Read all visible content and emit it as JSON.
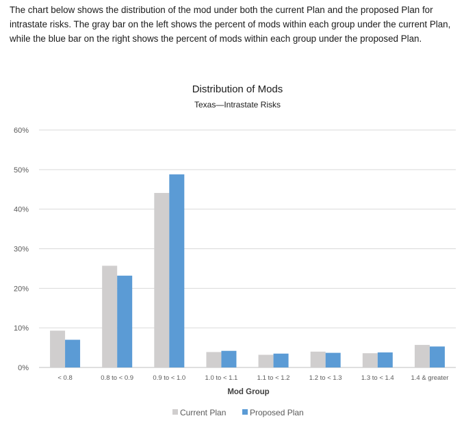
{
  "intro_text": "The chart below shows the distribution of the mod under both the current Plan and the proposed Plan for intrastate risks. The gray bar on the left shows the percent of mods within each group under the current Plan, while the blue bar on the right shows the percent of mods within each group under the proposed Plan.",
  "chart_data": {
    "type": "bar",
    "title": "Distribution of Mods",
    "subtitle": "Texas—Intrastate Risks",
    "xlabel": "Mod Group",
    "ylabel": "",
    "categories": [
      "< 0.8",
      "0.8 to < 0.9",
      "0.9 to < 1.0",
      "1.0 to < 1.1",
      "1.1 to < 1.2",
      "1.2 to < 1.3",
      "1.3 to < 1.4",
      "1.4 & greater"
    ],
    "yticks": [
      "0%",
      "10%",
      "20%",
      "30%",
      "40%",
      "50%",
      "60%"
    ],
    "ylim": [
      0,
      60
    ],
    "grid": true,
    "legend_position": "bottom",
    "series": [
      {
        "name": "Current Plan",
        "color": "#d0cece",
        "values": [
          9.3,
          25.7,
          44.1,
          3.9,
          3.2,
          4.0,
          3.6,
          5.7
        ]
      },
      {
        "name": "Proposed Plan",
        "color": "#5b9bd5",
        "values": [
          7.0,
          23.2,
          48.8,
          4.2,
          3.5,
          3.7,
          3.8,
          5.3
        ]
      }
    ]
  }
}
